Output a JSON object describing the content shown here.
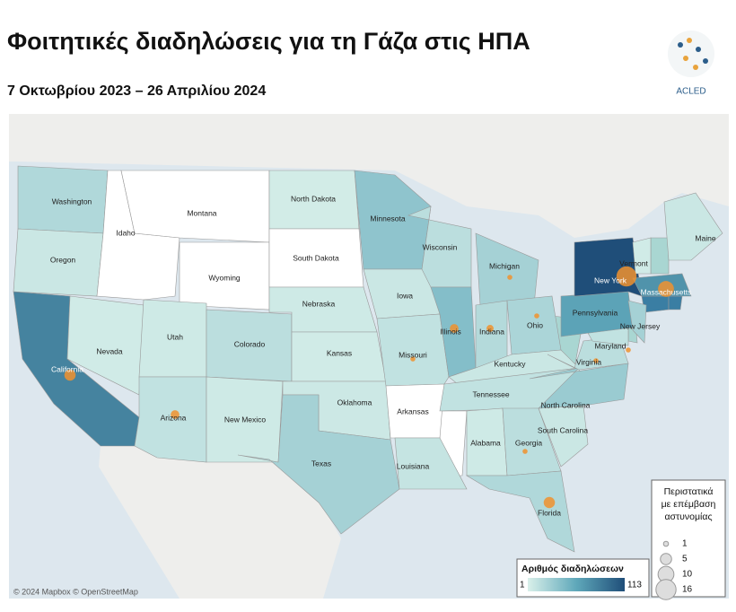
{
  "header": {
    "title": "Φοιτητικές διαδηλώσεις για τη Γάζα στις ΗΠΑ",
    "subtitle": "7 Οκτωβρίου 2023 – 26 Απριλίου 2024",
    "logo": "ACLED"
  },
  "map": {
    "attribution": "© 2024 Mapbox © OpenStreetMap",
    "bubble_color": "#f0922e",
    "states": [
      {
        "name": "Washington",
        "protests": 20,
        "police_incidents": null
      },
      {
        "name": "Oregon",
        "protests": 8,
        "police_incidents": null
      },
      {
        "name": "California",
        "protests": 80,
        "police_incidents": 5
      },
      {
        "name": "Nevada",
        "protests": 5,
        "police_incidents": null
      },
      {
        "name": "Idaho",
        "protests": null,
        "police_incidents": null
      },
      {
        "name": "Montana",
        "protests": null,
        "police_incidents": null
      },
      {
        "name": "Wyoming",
        "protests": null,
        "police_incidents": null
      },
      {
        "name": "Utah",
        "protests": 6,
        "police_incidents": null
      },
      {
        "name": "Arizona",
        "protests": 12,
        "police_incidents": 3
      },
      {
        "name": "Colorado",
        "protests": 15,
        "police_incidents": null
      },
      {
        "name": "New Mexico",
        "protests": 6,
        "police_incidents": null
      },
      {
        "name": "North Dakota",
        "protests": 4,
        "police_incidents": null
      },
      {
        "name": "South Dakota",
        "protests": null,
        "police_incidents": null
      },
      {
        "name": "Nebraska",
        "protests": 6,
        "police_incidents": null
      },
      {
        "name": "Kansas",
        "protests": 5,
        "police_incidents": null
      },
      {
        "name": "Oklahoma",
        "protests": 7,
        "police_incidents": null
      },
      {
        "name": "Texas",
        "protests": 25,
        "police_incidents": null
      },
      {
        "name": "Minnesota",
        "protests": 35,
        "police_incidents": null
      },
      {
        "name": "Iowa",
        "protests": 8,
        "police_incidents": null
      },
      {
        "name": "Missouri",
        "protests": 12,
        "police_incidents": 1
      },
      {
        "name": "Arkansas",
        "protests": null,
        "police_incidents": null
      },
      {
        "name": "Louisiana",
        "protests": 10,
        "police_incidents": null
      },
      {
        "name": "Wisconsin",
        "protests": 15,
        "police_incidents": null
      },
      {
        "name": "Illinois",
        "protests": 40,
        "police_incidents": 3
      },
      {
        "name": "Michigan",
        "protests": 25,
        "police_incidents": 1
      },
      {
        "name": "Indiana",
        "protests": 18,
        "police_incidents": 2
      },
      {
        "name": "Ohio",
        "protests": 22,
        "police_incidents": 1
      },
      {
        "name": "Kentucky",
        "protests": 8,
        "police_incidents": null
      },
      {
        "name": "Tennessee",
        "protests": 12,
        "police_incidents": null
      },
      {
        "name": "Alabama",
        "protests": 6,
        "police_incidents": null
      },
      {
        "name": "Georgia",
        "protests": 15,
        "police_incidents": 1
      },
      {
        "name": "Florida",
        "protests": 20,
        "police_incidents": 5
      },
      {
        "name": "South Carolina",
        "protests": 8,
        "police_incidents": null
      },
      {
        "name": "North Carolina",
        "protests": 30,
        "police_incidents": null
      },
      {
        "name": "Virginia",
        "protests": 15,
        "police_incidents": 1
      },
      {
        "name": "Maryland",
        "protests": 12,
        "police_incidents": 1
      },
      {
        "name": "Pennsylvania",
        "protests": 60,
        "police_incidents": null
      },
      {
        "name": "New Jersey",
        "protests": 25,
        "police_incidents": null
      },
      {
        "name": "New York",
        "protests": 113,
        "police_incidents": 16
      },
      {
        "name": "Vermont",
        "protests": 5,
        "police_incidents": null
      },
      {
        "name": "Massachusetts",
        "protests": 70,
        "police_incidents": 10
      },
      {
        "name": "Maine",
        "protests": 8,
        "police_incidents": null
      }
    ]
  },
  "color_legend": {
    "title": "Αριθμός διαδηλώσεων",
    "min": 1,
    "max": 113,
    "colors": [
      "#d9f0ea",
      "#5fa8ba",
      "#1f4e79"
    ]
  },
  "size_legend": {
    "title": [
      "Περιστατικά",
      "με επέμβαση",
      "αστυνομίας"
    ],
    "values": [
      1,
      5,
      10,
      16
    ]
  }
}
